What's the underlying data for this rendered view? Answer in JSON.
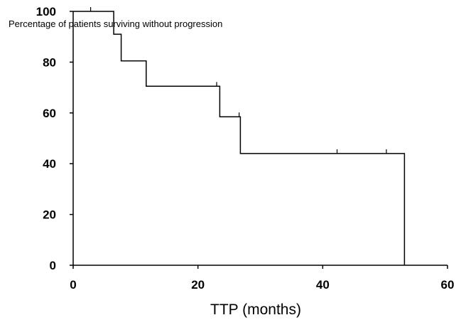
{
  "chart_data": {
    "type": "line",
    "step": true,
    "title": "Percentage of patients surviving without progression",
    "xlabel": "TTP (months)",
    "ylabel": "",
    "xlim": [
      0,
      60
    ],
    "ylim": [
      0,
      100
    ],
    "x_ticks": [
      0,
      20,
      40,
      60
    ],
    "y_ticks": [
      0,
      20,
      40,
      60,
      80,
      100
    ],
    "grid": false,
    "series": [
      {
        "x": [
          0,
          6.5,
          6.5,
          7.7,
          7.7,
          11.7,
          11.7,
          23.5,
          23.5,
          26.8,
          26.8,
          53.1,
          53.1
        ],
        "y": [
          100,
          100,
          91,
          91,
          80.5,
          80.5,
          70.5,
          70.5,
          58.5,
          58.5,
          44,
          44,
          0
        ]
      }
    ],
    "censored": [
      {
        "x": 2.8,
        "y": 100
      },
      {
        "x": 23.0,
        "y": 70.5
      },
      {
        "x": 26.6,
        "y": 58.5
      },
      {
        "x": 42.3,
        "y": 44
      },
      {
        "x": 50.2,
        "y": 44
      }
    ]
  }
}
